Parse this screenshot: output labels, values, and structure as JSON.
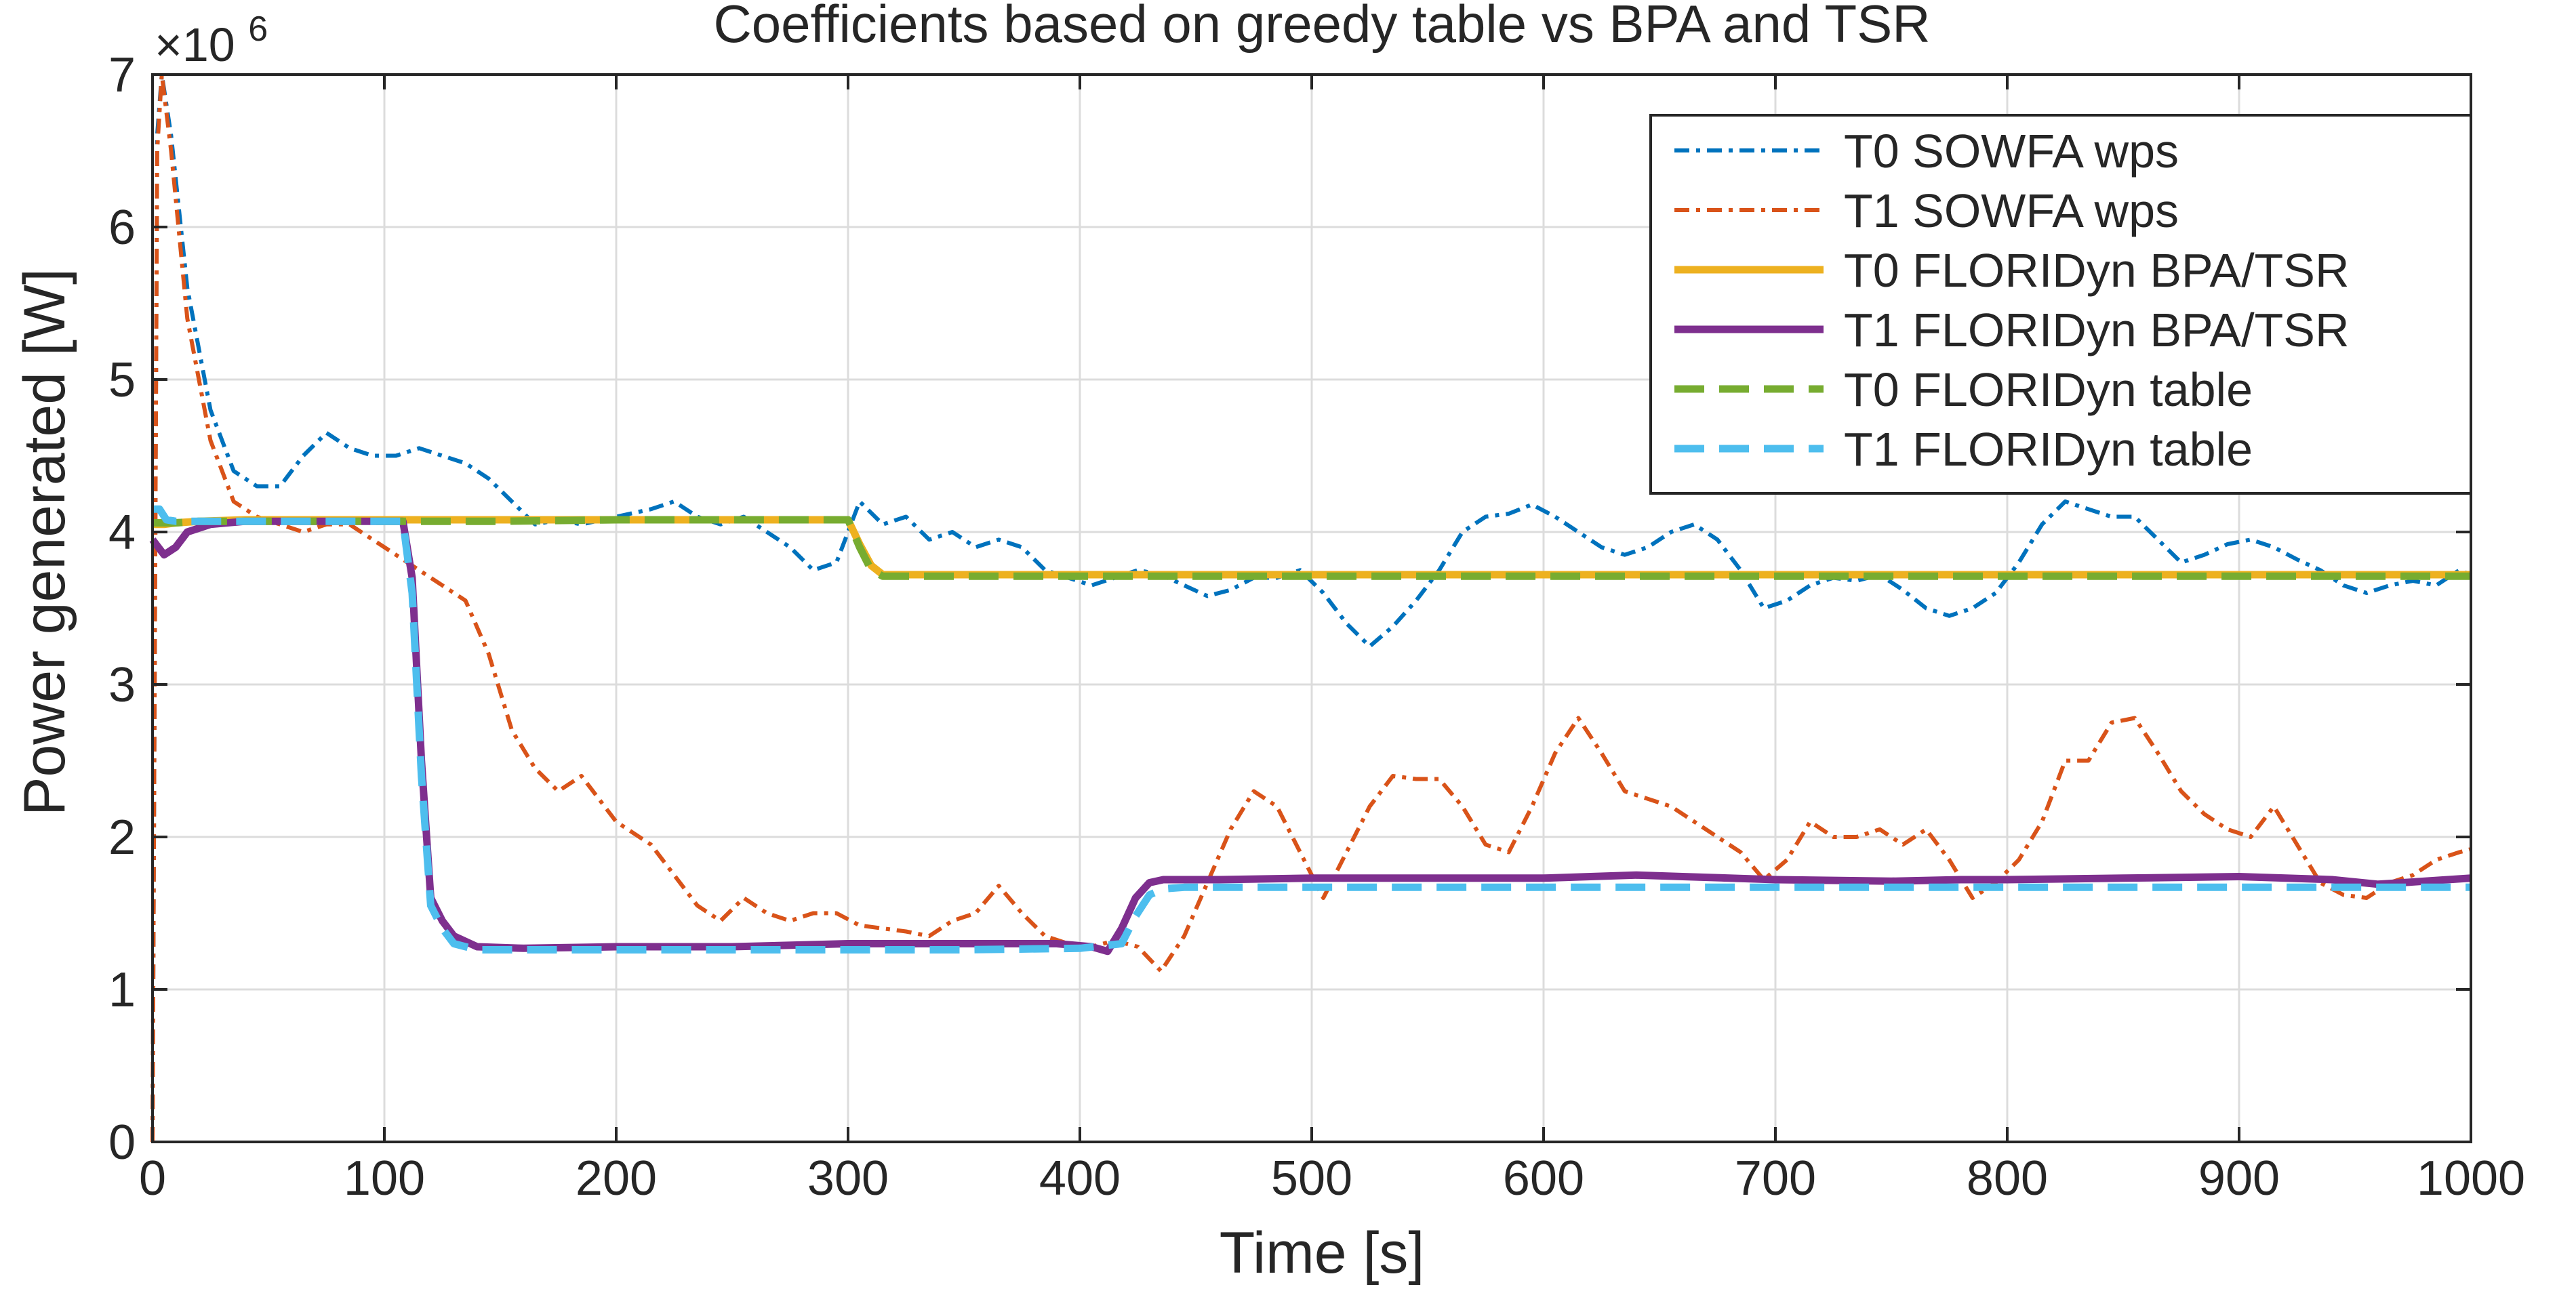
{
  "chart_data": {
    "type": "line",
    "title": "Coefficients based on greedy table vs BPA and TSR",
    "xlabel": "Time [s]",
    "ylabel": "Power generated [W]",
    "y_exponent_label": "×10",
    "y_exponent_power": "6",
    "xlim": [
      0,
      1000
    ],
    "ylim": [
      0,
      7
    ],
    "xticks": [
      0,
      100,
      200,
      300,
      400,
      500,
      600,
      700,
      800,
      900,
      1000
    ],
    "yticks": [
      0,
      1,
      2,
      3,
      4,
      5,
      6,
      7
    ],
    "grid": true,
    "legend_position": "top-right",
    "series": [
      {
        "name": "T0 SOWFA wps",
        "color": "#0072BD",
        "style": "dashdot",
        "x": [
          0,
          2,
          4,
          8,
          15,
          25,
          35,
          45,
          55,
          65,
          75,
          85,
          95,
          105,
          115,
          125,
          135,
          145,
          155,
          165,
          175,
          185,
          200,
          215,
          225,
          235,
          245,
          255,
          265,
          275,
          285,
          295,
          305,
          315,
          325,
          335,
          345,
          355,
          365,
          375,
          385,
          395,
          405,
          415,
          425,
          435,
          445,
          455,
          465,
          475,
          485,
          495,
          505,
          515,
          525,
          535,
          545,
          555,
          565,
          575,
          585,
          595,
          605,
          615,
          625,
          635,
          645,
          655,
          665,
          675,
          685,
          695,
          705,
          715,
          725,
          735,
          745,
          755,
          765,
          775,
          785,
          795,
          805,
          815,
          825,
          835,
          845,
          855,
          865,
          875,
          885,
          895,
          905,
          915,
          925,
          935,
          945,
          955,
          965,
          975,
          985,
          995,
          1000
        ],
        "y": [
          0,
          6.6,
          7.0,
          6.6,
          5.6,
          4.8,
          4.4,
          4.3,
          4.3,
          4.5,
          4.65,
          4.55,
          4.5,
          4.5,
          4.55,
          4.5,
          4.45,
          4.35,
          4.2,
          4.05,
          4.08,
          4.05,
          4.1,
          4.15,
          4.2,
          4.1,
          4.05,
          4.1,
          4.0,
          3.9,
          3.75,
          3.8,
          4.2,
          4.05,
          4.1,
          3.95,
          4.0,
          3.9,
          3.95,
          3.9,
          3.75,
          3.7,
          3.65,
          3.7,
          3.75,
          3.72,
          3.65,
          3.58,
          3.62,
          3.7,
          3.7,
          3.75,
          3.6,
          3.4,
          3.25,
          3.38,
          3.55,
          3.75,
          4.0,
          4.1,
          4.12,
          4.18,
          4.1,
          4.0,
          3.9,
          3.85,
          3.9,
          4.0,
          4.05,
          3.95,
          3.75,
          3.5,
          3.55,
          3.65,
          3.7,
          3.68,
          3.72,
          3.62,
          3.5,
          3.45,
          3.5,
          3.6,
          3.8,
          4.05,
          4.2,
          4.15,
          4.1,
          4.1,
          3.95,
          3.8,
          3.85,
          3.92,
          3.95,
          3.9,
          3.82,
          3.75,
          3.65,
          3.6,
          3.65,
          3.68,
          3.65,
          3.75,
          3.72
        ]
      },
      {
        "name": "T1 SOWFA wps",
        "color": "#D95319",
        "style": "dashdot",
        "x": [
          0,
          2,
          4,
          8,
          15,
          25,
          35,
          45,
          55,
          65,
          75,
          85,
          95,
          105,
          115,
          125,
          135,
          145,
          155,
          165,
          175,
          185,
          200,
          215,
          225,
          235,
          245,
          255,
          265,
          275,
          285,
          295,
          305,
          315,
          325,
          335,
          345,
          355,
          365,
          375,
          385,
          395,
          405,
          415,
          425,
          435,
          445,
          455,
          465,
          475,
          485,
          495,
          505,
          515,
          525,
          535,
          545,
          555,
          565,
          575,
          585,
          595,
          605,
          615,
          625,
          635,
          645,
          655,
          665,
          675,
          685,
          695,
          705,
          715,
          725,
          735,
          745,
          755,
          765,
          775,
          785,
          795,
          805,
          815,
          825,
          835,
          845,
          855,
          865,
          875,
          885,
          895,
          905,
          915,
          925,
          935,
          945,
          955,
          965,
          975,
          985,
          995,
          1000
        ],
        "y": [
          0,
          6.5,
          7.0,
          6.5,
          5.4,
          4.6,
          4.2,
          4.1,
          4.05,
          4.0,
          4.05,
          4.05,
          3.95,
          3.85,
          3.75,
          3.65,
          3.55,
          3.2,
          2.7,
          2.45,
          2.3,
          2.4,
          2.1,
          1.95,
          1.75,
          1.55,
          1.45,
          1.6,
          1.5,
          1.45,
          1.5,
          1.5,
          1.42,
          1.4,
          1.38,
          1.35,
          1.45,
          1.5,
          1.68,
          1.5,
          1.35,
          1.3,
          1.28,
          1.32,
          1.28,
          1.12,
          1.35,
          1.7,
          2.05,
          2.3,
          2.2,
          1.9,
          1.6,
          1.9,
          2.2,
          2.4,
          2.38,
          2.38,
          2.2,
          1.95,
          1.9,
          2.2,
          2.55,
          2.78,
          2.55,
          2.3,
          2.25,
          2.2,
          2.1,
          2.0,
          1.9,
          1.72,
          1.85,
          2.1,
          2.0,
          2.0,
          2.05,
          1.95,
          2.05,
          1.85,
          1.6,
          1.7,
          1.85,
          2.1,
          2.5,
          2.5,
          2.75,
          2.78,
          2.55,
          2.3,
          2.15,
          2.05,
          2.0,
          2.2,
          1.95,
          1.7,
          1.62,
          1.6,
          1.7,
          1.75,
          1.85,
          1.9,
          1.92
        ]
      },
      {
        "name": "T0 FLORIDyn BPA/TSR",
        "color": "#EDB120",
        "style": "solid",
        "x": [
          0,
          5,
          10,
          20,
          40,
          60,
          100,
          150,
          200,
          250,
          295,
          300,
          305,
          310,
          315,
          330,
          400,
          500,
          600,
          700,
          800,
          900,
          1000
        ],
        "y": [
          4.05,
          4.05,
          4.06,
          4.07,
          4.08,
          4.08,
          4.08,
          4.08,
          4.08,
          4.08,
          4.08,
          4.08,
          3.92,
          3.78,
          3.72,
          3.72,
          3.72,
          3.72,
          3.72,
          3.72,
          3.72,
          3.72,
          3.72
        ]
      },
      {
        "name": "T1 FLORIDyn BPA/TSR",
        "color": "#7E2F8E",
        "style": "solid",
        "x": [
          0,
          5,
          10,
          15,
          25,
          40,
          60,
          80,
          100,
          108,
          112,
          116,
          120,
          125,
          130,
          140,
          160,
          200,
          250,
          300,
          350,
          390,
          405,
          412,
          418,
          424,
          430,
          436,
          445,
          460,
          500,
          550,
          600,
          640,
          660,
          700,
          750,
          780,
          800,
          850,
          900,
          940,
          960,
          1000
        ],
        "y": [
          3.95,
          3.85,
          3.9,
          4.0,
          4.05,
          4.07,
          4.07,
          4.07,
          4.07,
          4.07,
          3.7,
          2.5,
          1.6,
          1.45,
          1.35,
          1.28,
          1.27,
          1.28,
          1.28,
          1.3,
          1.3,
          1.3,
          1.28,
          1.25,
          1.4,
          1.6,
          1.7,
          1.72,
          1.72,
          1.72,
          1.73,
          1.73,
          1.73,
          1.75,
          1.74,
          1.72,
          1.71,
          1.72,
          1.72,
          1.73,
          1.74,
          1.72,
          1.69,
          1.73
        ]
      },
      {
        "name": "T0 FLORIDyn table",
        "color": "#77AC30",
        "style": "dashed",
        "x": [
          0,
          5,
          10,
          20,
          40,
          60,
          100,
          150,
          200,
          250,
          295,
          300,
          305,
          310,
          315,
          330,
          400,
          500,
          600,
          700,
          800,
          900,
          1000
        ],
        "y": [
          4.06,
          4.06,
          4.06,
          4.07,
          4.07,
          4.07,
          4.07,
          4.07,
          4.08,
          4.08,
          4.08,
          4.08,
          3.9,
          3.75,
          3.71,
          3.71,
          3.71,
          3.71,
          3.71,
          3.71,
          3.71,
          3.71,
          3.71
        ]
      },
      {
        "name": "T1 FLORIDyn table",
        "color": "#4DBEEE",
        "style": "dashed",
        "x": [
          0,
          3,
          6,
          10,
          30,
          60,
          100,
          108,
          112,
          116,
          120,
          125,
          130,
          140,
          160,
          200,
          250,
          300,
          350,
          400,
          418,
          424,
          430,
          436,
          445,
          460,
          500,
          600,
          700,
          800,
          900,
          1000
        ],
        "y": [
          4.15,
          4.15,
          4.08,
          4.07,
          4.07,
          4.07,
          4.07,
          4.07,
          3.6,
          2.4,
          1.55,
          1.4,
          1.3,
          1.26,
          1.26,
          1.26,
          1.26,
          1.26,
          1.26,
          1.27,
          1.3,
          1.48,
          1.62,
          1.66,
          1.67,
          1.67,
          1.67,
          1.67,
          1.67,
          1.67,
          1.67,
          1.67
        ]
      }
    ]
  }
}
